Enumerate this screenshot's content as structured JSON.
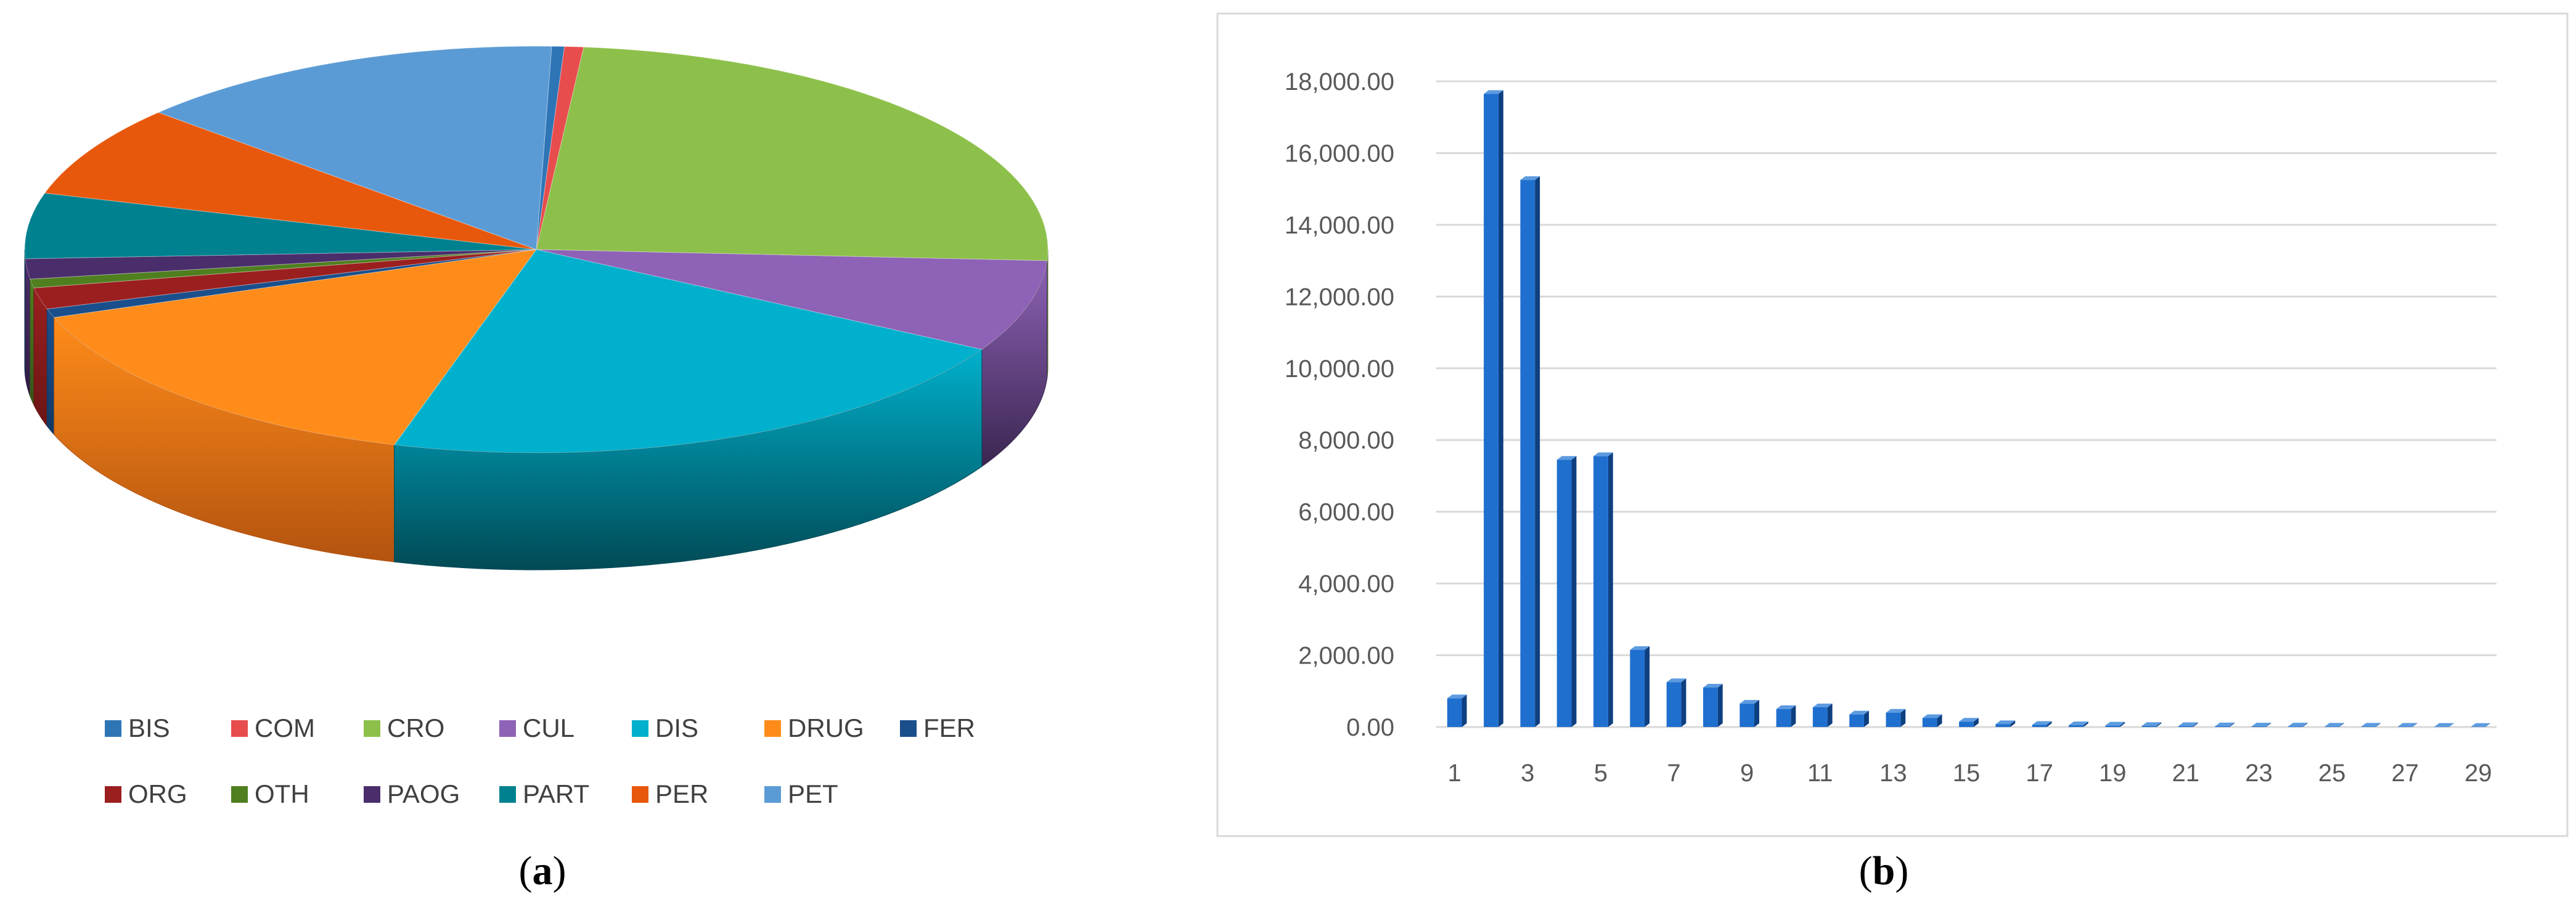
{
  "panels": {
    "a": {
      "caption_open": "(",
      "caption_letter": "a",
      "caption_close": ")"
    },
    "b": {
      "caption_open": "(",
      "caption_letter": "b",
      "caption_close": ")"
    }
  },
  "chart_data": [
    {
      "type": "pie",
      "style": "3d",
      "legend_position": "bottom",
      "categories": [
        "BIS",
        "COM",
        "CRO",
        "CUL",
        "DIS",
        "DRUG",
        "FER",
        "ORG",
        "OTH",
        "PAOG",
        "PART",
        "PER",
        "PET"
      ],
      "values": [
        0.4,
        0.6,
        24.4,
        7.3,
        21.3,
        15.1,
        0.7,
        1.7,
        0.7,
        1.6,
        5.2,
        7.3,
        13.7
      ],
      "colors": [
        "#2e75b6",
        "#e84d4d",
        "#8dc04a",
        "#8e62b6",
        "#00b0cc",
        "#ff8c1a",
        "#1a4f8c",
        "#9b1f1f",
        "#4f7f1f",
        "#4a2d6b",
        "#00818f",
        "#e8580c",
        "#5b9bd5"
      ],
      "side_colors": [
        "#1b4b7a",
        "#9c2f2f",
        "#5a8030",
        "#3a2650",
        "#014a55",
        "#b3530f",
        "#123964",
        "#6b1515",
        "#35561a",
        "#2e1b45",
        "#01535d",
        "#9e3b08",
        "#3c6a93"
      ]
    },
    {
      "type": "bar",
      "style": "3d",
      "grid": true,
      "ylim": [
        0,
        18000
      ],
      "yticks": [
        "0.00",
        "2,000.00",
        "4,000.00",
        "6,000.00",
        "8,000.00",
        "10,000.00",
        "12,000.00",
        "14,000.00",
        "16,000.00",
        "18,000.00"
      ],
      "ytick_values": [
        0,
        2000,
        4000,
        6000,
        8000,
        10000,
        12000,
        14000,
        16000,
        18000
      ],
      "x": [
        1,
        2,
        3,
        4,
        5,
        6,
        7,
        8,
        9,
        10,
        11,
        12,
        13,
        14,
        15,
        16,
        17,
        18,
        19,
        20,
        21,
        22,
        23,
        24,
        25,
        26,
        27,
        28,
        29
      ],
      "xtick_labels": [
        "1",
        "3",
        "5",
        "7",
        "9",
        "11",
        "13",
        "15",
        "17",
        "19",
        "21",
        "23",
        "25",
        "27",
        "29"
      ],
      "values": [
        800,
        17650,
        15250,
        7450,
        7550,
        2150,
        1250,
        1100,
        650,
        500,
        550,
        350,
        400,
        250,
        150,
        80,
        60,
        50,
        40,
        30,
        25,
        20,
        15,
        15,
        10,
        10,
        8,
        6,
        5
      ],
      "colors": {
        "front": "#1f6fcf",
        "side": "#0e3f80",
        "top": "#5d9be0"
      }
    }
  ]
}
